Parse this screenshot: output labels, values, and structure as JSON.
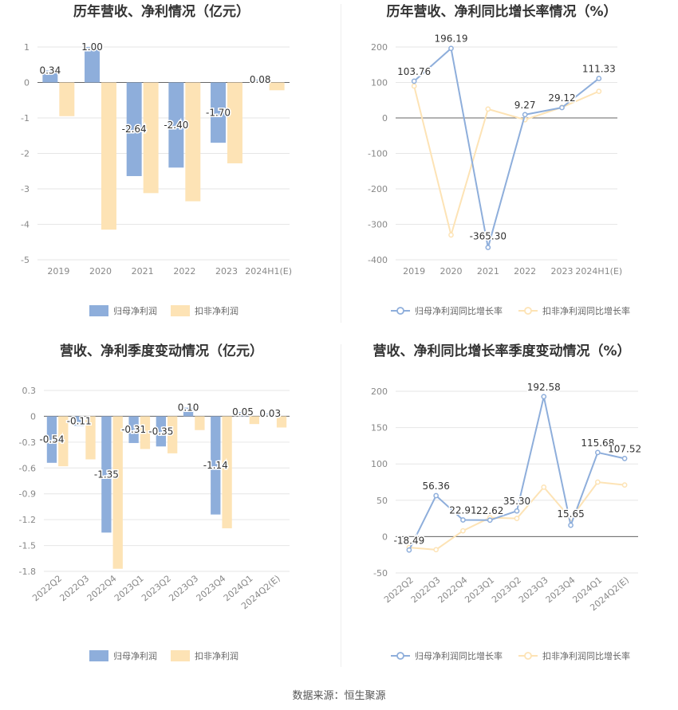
{
  "source_text": "数据来源：恒生聚源",
  "chart_data": [
    {
      "type": "bar",
      "title": "历年营收、净利情况（亿元）",
      "categories": [
        "2019",
        "2020",
        "2021",
        "2022",
        "2023",
        "2024H1(E)"
      ],
      "series": [
        {
          "name": "归母净利润",
          "color": "#8eaedb",
          "values": [
            0.34,
            1.0,
            -2.64,
            -2.4,
            -1.7,
            0.08
          ],
          "labels": [
            "0.34",
            "1.00",
            "-2.64",
            "-2.40",
            "-1.70",
            "0.08"
          ]
        },
        {
          "name": "扣非净利润",
          "color": "#fde3b5",
          "values": [
            -0.95,
            -4.15,
            -3.12,
            -3.35,
            -2.28,
            -0.22
          ]
        }
      ],
      "ylim": [
        -5,
        1
      ],
      "yticks": [
        "1",
        "0",
        "-1",
        "-2",
        "-3",
        "-4",
        "-5"
      ],
      "legend": "bottom"
    },
    {
      "type": "line",
      "title": "历年营收、净利同比增长率情况（%）",
      "categories": [
        "2019",
        "2020",
        "2021",
        "2022",
        "2023",
        "2024H1(E)"
      ],
      "series": [
        {
          "name": "归母净利润同比增长率",
          "color": "#8eaedb",
          "values": [
            103.76,
            196.19,
            -365.3,
            9.27,
            29.12,
            111.33
          ],
          "labels": [
            "103.76",
            "196.19",
            "-365.30",
            "9.27",
            "29.12",
            "111.33"
          ]
        },
        {
          "name": "扣非净利润同比增长率",
          "color": "#fde3b5",
          "values": [
            90,
            -330,
            25,
            -5,
            30,
            75
          ]
        }
      ],
      "ylim": [
        -400,
        200
      ],
      "yticks": [
        "200",
        "100",
        "0",
        "-100",
        "-200",
        "-300",
        "-400"
      ],
      "legend": "bottom"
    },
    {
      "type": "bar",
      "title": "营收、净利季度变动情况（亿元）",
      "categories": [
        "2022Q2",
        "2022Q3",
        "2022Q4",
        "2023Q1",
        "2023Q2",
        "2023Q3",
        "2023Q4",
        "2024Q1",
        "2024Q2(E)"
      ],
      "series": [
        {
          "name": "归母净利润",
          "color": "#8eaedb",
          "values": [
            -0.54,
            -0.11,
            -1.35,
            -0.31,
            -0.35,
            0.1,
            -1.14,
            0.05,
            0.03
          ],
          "labels": [
            "-0.54",
            "-0.11",
            "-1.35",
            "-0.31",
            "-0.35",
            "0.10",
            "-1.14",
            "0.05",
            "0.03"
          ]
        },
        {
          "name": "扣非净利润",
          "color": "#fde3b5",
          "values": [
            -0.58,
            -0.5,
            -1.77,
            -0.38,
            -0.43,
            -0.16,
            -1.3,
            -0.09,
            -0.13
          ]
        }
      ],
      "ylim": [
        -1.8,
        0.3
      ],
      "yticks": [
        "0.3",
        "0",
        "-0.3",
        "-0.6",
        "-0.9",
        "-1.2",
        "-1.5",
        "-1.8"
      ],
      "legend": "bottom"
    },
    {
      "type": "line",
      "title": "营收、净利同比增长率季度变动情况（%）",
      "categories": [
        "2022Q2",
        "2022Q3",
        "2022Q4",
        "2023Q1",
        "2023Q2",
        "2023Q3",
        "2023Q4",
        "2024Q1",
        "2024Q2(E)"
      ],
      "series": [
        {
          "name": "归母净利润同比增长率",
          "color": "#8eaedb",
          "values": [
            -18.49,
            56.36,
            22.91,
            22.62,
            35.3,
            192.58,
            15.65,
            115.68,
            107.52
          ],
          "labels": [
            "-18.49",
            "56.36",
            "22.91",
            "22.62",
            "35.30",
            "192.58",
            "15.65",
            "115.68",
            "107.52"
          ]
        },
        {
          "name": "扣非净利润同比增长率",
          "color": "#fde3b5",
          "values": [
            -15,
            -18,
            8,
            26,
            25,
            68,
            25,
            75,
            71
          ]
        }
      ],
      "ylim": [
        -50,
        200
      ],
      "yticks": [
        "200",
        "150",
        "100",
        "50",
        "0",
        "-50"
      ],
      "legend": "bottom"
    }
  ]
}
